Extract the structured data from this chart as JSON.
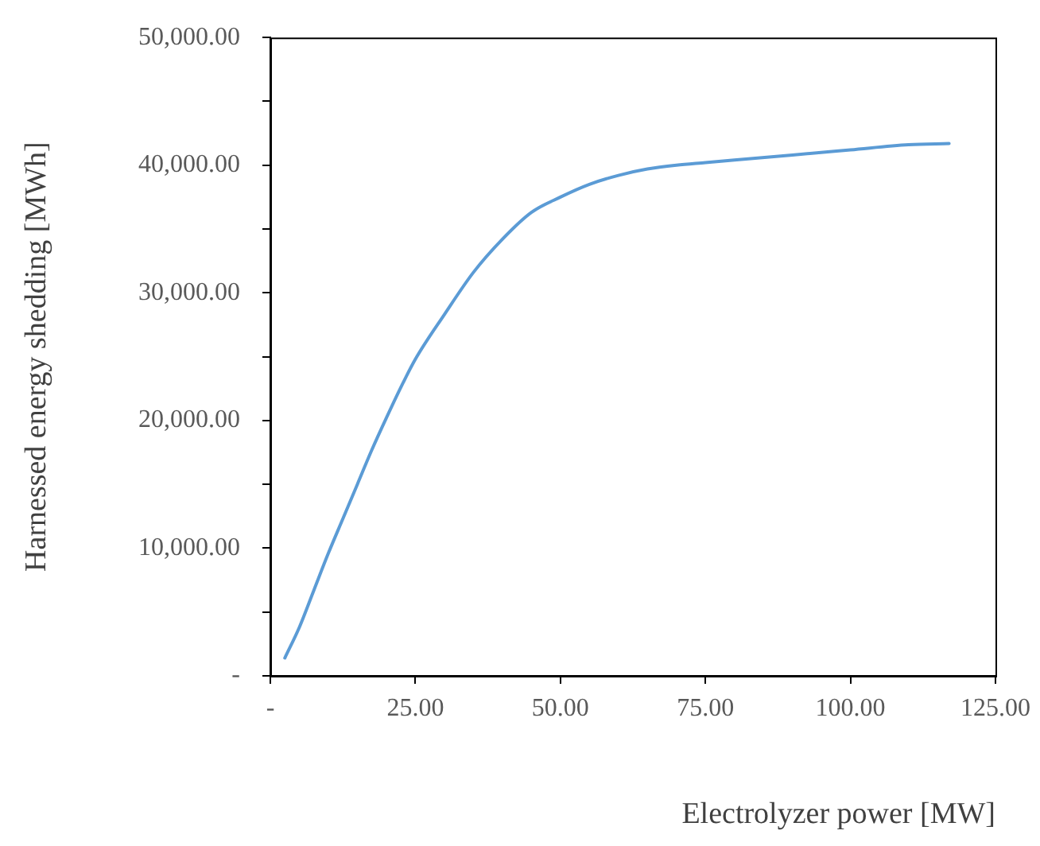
{
  "chart_data": {
    "type": "line",
    "xlabel": "Electrolyzer power [MW]",
    "ylabel": "Harnessed energy shedding [MWh]",
    "x": [
      2.5,
      5,
      7.5,
      10,
      12.5,
      15,
      17.5,
      20,
      22.5,
      25,
      30,
      35,
      40,
      45,
      50,
      55,
      60,
      65,
      70,
      75,
      80,
      90,
      100,
      110,
      117
    ],
    "series": [
      {
        "color": "#5b9bd5",
        "values": [
          1400,
          3800,
          6700,
          9600,
          12300,
          15000,
          17700,
          20200,
          22600,
          24800,
          28300,
          31600,
          34200,
          36300,
          37500,
          38500,
          39200,
          39700,
          40000,
          40200,
          40400,
          40800,
          41200,
          41600,
          41700
        ]
      }
    ],
    "xlim": [
      0,
      125
    ],
    "xticks": [
      {
        "value": 0,
        "label": "-"
      },
      {
        "value": 25,
        "label": "25.00"
      },
      {
        "value": 50,
        "label": "50.00"
      },
      {
        "value": 75,
        "label": "75.00"
      },
      {
        "value": 100,
        "label": "100.00"
      },
      {
        "value": 125,
        "label": "125.00"
      }
    ],
    "ylim": [
      0,
      50000
    ],
    "yticks": [
      {
        "value": 0,
        "label": "-"
      },
      {
        "value": 5000,
        "label": null
      },
      {
        "value": 10000,
        "label": "10,000.00"
      },
      {
        "value": 15000,
        "label": null
      },
      {
        "value": 20000,
        "label": "20,000.00"
      },
      {
        "value": 25000,
        "label": null
      },
      {
        "value": 30000,
        "label": "30,000.00"
      },
      {
        "value": 35000,
        "label": null
      },
      {
        "value": 40000,
        "label": "40,000.00"
      },
      {
        "value": 45000,
        "label": null
      },
      {
        "value": 50000,
        "label": "50,000.00"
      }
    ],
    "grid": false,
    "legend": false,
    "marker": "none",
    "line_style": "solid"
  }
}
